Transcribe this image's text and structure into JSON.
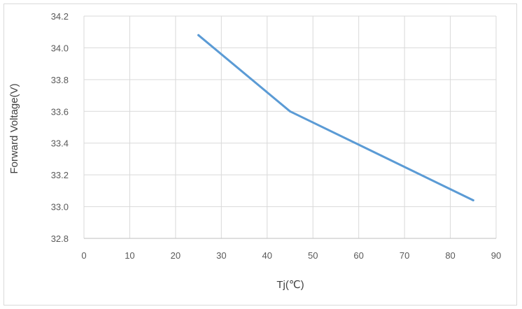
{
  "chart_data": {
    "type": "line",
    "title": "",
    "xlabel": "Tj(℃)",
    "ylabel": "Forward Voltage(V)",
    "xlim": [
      0,
      90
    ],
    "ylim": [
      32.8,
      34.2
    ],
    "x_ticks": [
      "0",
      "10",
      "20",
      "30",
      "40",
      "50",
      "60",
      "70",
      "80",
      "90"
    ],
    "y_ticks": [
      "32.8",
      "33.0",
      "33.2",
      "33.4",
      "33.6",
      "33.8",
      "34.0",
      "34.2"
    ],
    "grid": true,
    "legend": "none",
    "series": [
      {
        "color": "#5b9bd5",
        "x": [
          25,
          45,
          65,
          85
        ],
        "y": [
          34.08,
          33.6,
          33.32,
          33.04
        ]
      }
    ]
  }
}
